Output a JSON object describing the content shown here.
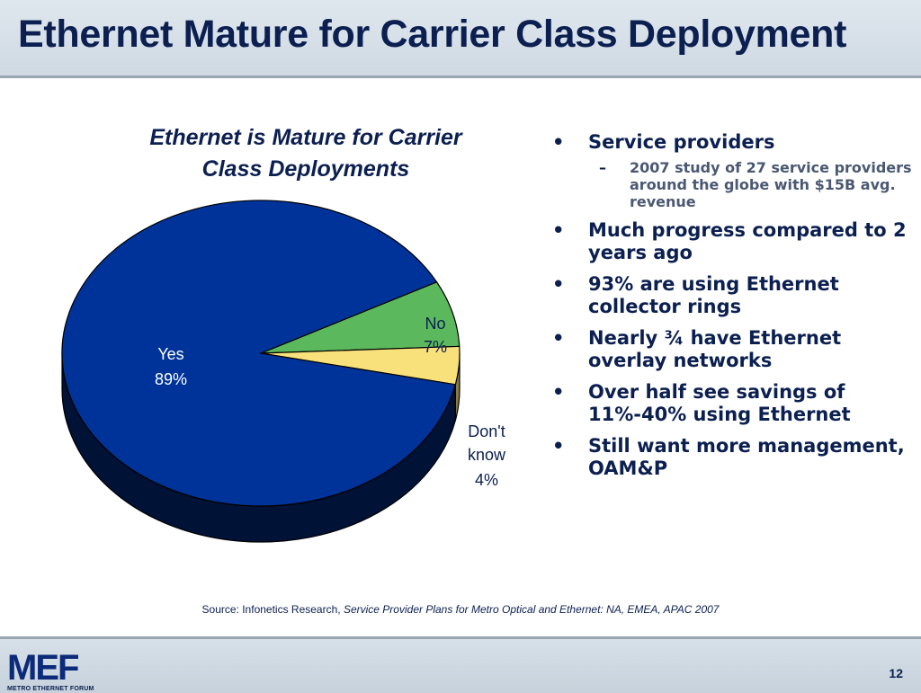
{
  "slide": {
    "title": "Ethernet Mature for Carrier Class Deployment",
    "page_number": "12"
  },
  "chart_data": {
    "type": "pie",
    "title_lines": [
      "Ethernet is Mature for Carrier",
      "Class Deployments"
    ],
    "slices": [
      {
        "name": "Yes",
        "value": 89,
        "label": "89%",
        "color": "#003399"
      },
      {
        "name": "No",
        "value": 7,
        "label": "7%",
        "color": "#5cb85c"
      },
      {
        "name": "Don't know",
        "value": 4,
        "label": "4%",
        "color": "#f8e07a"
      }
    ],
    "legend": false,
    "three_d": true
  },
  "labels": {
    "yes_name": "Yes",
    "yes_pct": "89%",
    "no_name": "No",
    "no_pct": "7%",
    "dk_line1": "Don't",
    "dk_line2": "know",
    "dk_pct": "4%"
  },
  "bullets": [
    {
      "text": "Service providers",
      "sub": [
        "2007 study of 27 service providers around the globe with $15B avg. revenue"
      ]
    },
    {
      "text": "Much progress compared to 2 years ago",
      "sub": []
    },
    {
      "text": "93% are using Ethernet collector rings",
      "sub": []
    },
    {
      "text": "Nearly ¾ have Ethernet overlay networks",
      "sub": []
    },
    {
      "text": "Over half see savings of 11%-40% using Ethernet",
      "sub": []
    },
    {
      "text": "Still want more management, OAM&P",
      "sub": []
    }
  ],
  "bullet_marks": {
    "main": "•",
    "sub": "–"
  },
  "source": {
    "prefix": "Source: Infonetics Research, ",
    "title": "Service Provider Plans for Metro Optical and Ethernet: NA, EMEA, APAC 2007"
  },
  "logo": {
    "main": "MEF",
    "sub": "METRO ETHERNET FORUM"
  }
}
